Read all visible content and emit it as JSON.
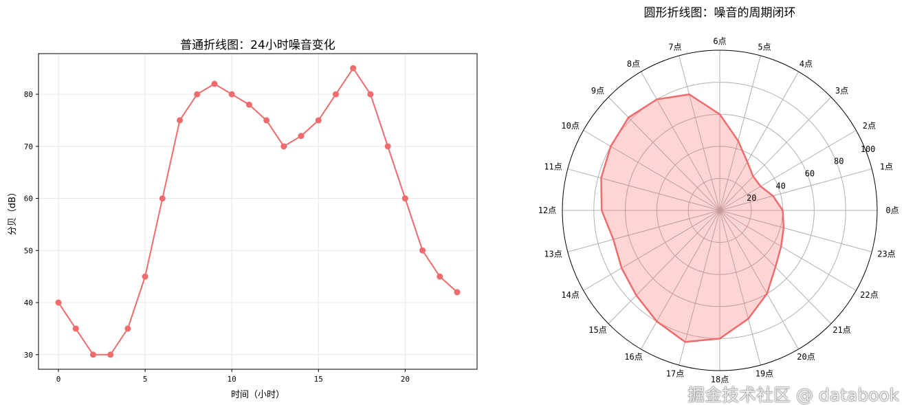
{
  "chart_data": [
    {
      "type": "line",
      "title": "普通折线图：24小时噪音变化",
      "xlabel": "时间（小时）",
      "ylabel": "分贝（dB）",
      "x": [
        0,
        1,
        2,
        3,
        4,
        5,
        6,
        7,
        8,
        9,
        10,
        11,
        12,
        13,
        14,
        15,
        16,
        17,
        18,
        19,
        20,
        21,
        22,
        23
      ],
      "values": [
        40,
        35,
        30,
        30,
        35,
        45,
        60,
        75,
        80,
        82,
        80,
        78,
        75,
        70,
        72,
        75,
        80,
        85,
        80,
        70,
        60,
        50,
        45,
        42
      ],
      "xlim": [
        -1.15,
        24.15
      ],
      "ylim": [
        27.2,
        87.8
      ],
      "xticks": [
        0,
        5,
        10,
        15,
        20
      ],
      "yticks": [
        30,
        40,
        50,
        60,
        70,
        80
      ],
      "grid": true,
      "color": "#f06b6b",
      "marker": "circle"
    },
    {
      "type": "polar-line",
      "title": "圆形折线图：噪音的周期闭环",
      "categories": [
        "0点",
        "1点",
        "2点",
        "3点",
        "4点",
        "5点",
        "6点",
        "7点",
        "8点",
        "9点",
        "10点",
        "11点",
        "12点",
        "13点",
        "14点",
        "15点",
        "16点",
        "17点",
        "18点",
        "19点",
        "20点",
        "21点",
        "22点",
        "23点"
      ],
      "values": [
        40,
        35,
        30,
        30,
        35,
        45,
        60,
        75,
        80,
        82,
        80,
        78,
        75,
        70,
        72,
        75,
        80,
        85,
        80,
        70,
        60,
        50,
        45,
        42
      ],
      "rlim": [
        0,
        100
      ],
      "rticks": [
        20,
        40,
        60,
        80,
        100
      ],
      "grid": true,
      "fill": true,
      "color": "#f06b6b",
      "direction": "counterclockwise",
      "zero_location": "right"
    }
  ],
  "watermark": "掘金技术社区 @ databook"
}
